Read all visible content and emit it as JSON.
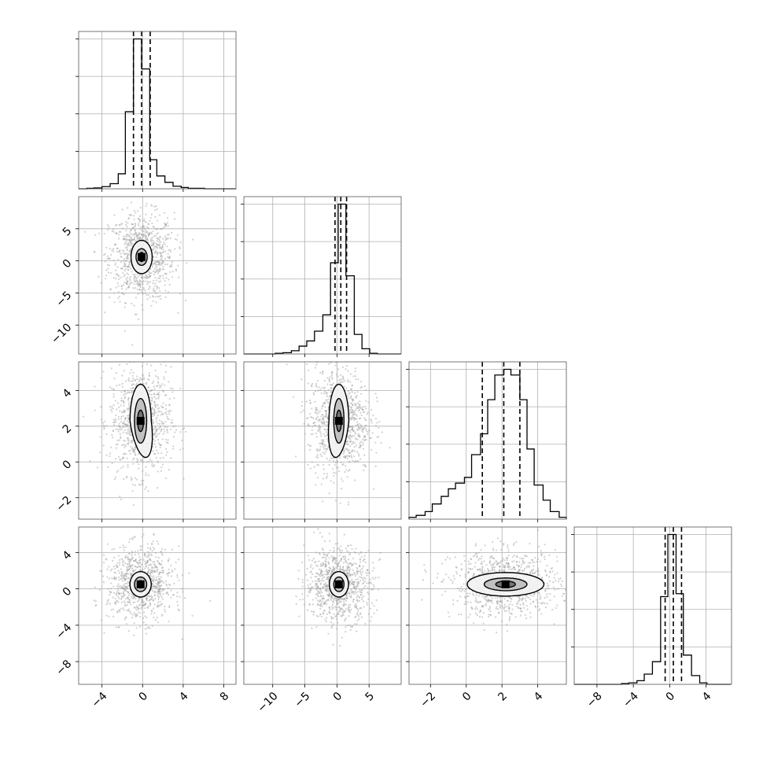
{
  "chart_data": {
    "type": "corner",
    "title": "",
    "grid": true,
    "colors": {
      "line": "#000000",
      "points": "#9a9a9a",
      "frame": "#555555",
      "grid": "#b0b0b0",
      "level_1": "#f2f2f2",
      "level_2": "#bdbdbd",
      "level_3": "#6f6f6f",
      "level_4": "#000000"
    },
    "parameters": [
      {
        "range": [
          -6.3,
          9.2
        ],
        "ticks": [
          -4,
          0,
          4,
          8
        ],
        "tick_labels": [
          "−4",
          "0",
          "4",
          "8"
        ],
        "quantiles": [
          -0.9,
          -0.1,
          0.75
        ]
      },
      {
        "range": [
          -14.5,
          10.0
        ],
        "ticks": [
          -10,
          -5,
          0,
          5
        ],
        "tick_labels": [
          "−10",
          "−5",
          "0",
          "5"
        ],
        "quantiles": [
          -0.3,
          0.6,
          1.5
        ]
      },
      {
        "range": [
          -3.2,
          5.6
        ],
        "ticks": [
          -2,
          0,
          2,
          4
        ],
        "tick_labels": [
          "−2",
          "0",
          "2",
          "4"
        ],
        "quantiles": [
          0.9,
          2.1,
          3.0
        ]
      },
      {
        "range": [
          -10.5,
          6.8
        ],
        "ticks": [
          -8,
          -4,
          0,
          4
        ],
        "tick_labels": [
          "−8",
          "−4",
          "0",
          "4"
        ],
        "quantiles": [
          -0.5,
          0.4,
          1.3
        ]
      }
    ],
    "histograms": [
      {
        "param": 0,
        "bin_edges": [
          -6.3,
          -5.5,
          -4.8,
          -4.0,
          -3.2,
          -2.4,
          -1.7,
          -0.9,
          -0.1,
          0.7,
          1.4,
          2.2,
          3.0,
          3.8,
          4.5,
          5.3,
          6.1,
          6.9,
          7.6,
          8.4,
          9.2
        ],
        "counts": [
          0,
          1,
          2,
          5,
          12,
          35,
          180,
          350,
          280,
          68,
          30,
          15,
          6,
          3,
          1,
          1,
          0,
          0,
          0,
          0
        ]
      },
      {
        "param": 1,
        "bin_edges": [
          -14.5,
          -13.3,
          -12.0,
          -10.8,
          -9.6,
          -8.4,
          -7.1,
          -5.9,
          -4.7,
          -3.5,
          -2.2,
          -1.0,
          0.2,
          1.4,
          2.7,
          3.9,
          5.1,
          6.3,
          7.6,
          8.8,
          10.0
        ],
        "counts": [
          0,
          0,
          0,
          0,
          1,
          2,
          5,
          12,
          20,
          35,
          60,
          140,
          230,
          120,
          30,
          8,
          1,
          0,
          0,
          0
        ]
      },
      {
        "param": 2,
        "bin_edges": [
          -3.2,
          -2.8,
          -2.3,
          -1.9,
          -1.4,
          -1.0,
          -0.6,
          -0.1,
          0.3,
          0.8,
          1.2,
          1.6,
          2.1,
          2.5,
          3.0,
          3.4,
          3.8,
          4.3,
          4.7,
          5.2,
          5.6
        ],
        "counts": [
          1,
          2,
          4,
          8,
          12,
          16,
          19,
          22,
          34,
          45,
          63,
          76,
          79,
          76,
          63,
          37,
          18,
          10,
          4,
          1
        ]
      },
      {
        "param": 3,
        "bin_edges": [
          -10.5,
          -9.6,
          -8.8,
          -7.9,
          -7.1,
          -6.2,
          -5.3,
          -4.5,
          -3.6,
          -2.8,
          -1.9,
          -1.0,
          -0.2,
          0.7,
          1.5,
          2.4,
          3.3,
          4.1,
          5.0,
          5.8,
          6.7
        ],
        "counts": [
          0,
          0,
          0,
          0,
          0,
          0,
          1,
          2,
          5,
          14,
          31,
          120,
          205,
          124,
          40,
          12,
          2,
          0,
          0,
          0
        ]
      }
    ],
    "pairs": [
      {
        "x_param": 0,
        "y_param": 1,
        "center": [
          -0.1,
          0.6
        ],
        "levels": [
          {
            "sx": 1.05,
            "sy": 2.6,
            "skew": 0.0
          },
          {
            "sx": 0.55,
            "sy": 1.3,
            "skew": 0.0
          },
          {
            "sx": 0.28,
            "sy": 0.7,
            "skew": 0.0
          }
        ],
        "scatter_spread": [
          1.6,
          3.4
        ]
      },
      {
        "x_param": 0,
        "y_param": 2,
        "center": [
          -0.2,
          2.3
        ],
        "levels": [
          {
            "sx": 1.05,
            "sy": 2.05,
            "skew": 0.5
          },
          {
            "sx": 0.6,
            "sy": 1.25,
            "skew": 0.0
          },
          {
            "sx": 0.3,
            "sy": 0.6,
            "skew": 0.0
          }
        ],
        "scatter_spread": [
          1.5,
          1.5
        ]
      },
      {
        "x_param": 1,
        "y_param": 2,
        "center": [
          0.3,
          2.3
        ],
        "levels": [
          {
            "sx": 1.55,
            "sy": 2.05,
            "skew": -0.5
          },
          {
            "sx": 0.8,
            "sy": 1.25,
            "skew": 0.0
          },
          {
            "sx": 0.4,
            "sy": 0.6,
            "skew": 0.0
          }
        ],
        "scatter_spread": [
          2.4,
          1.5
        ]
      },
      {
        "x_param": 0,
        "y_param": 3,
        "center": [
          -0.2,
          0.5
        ],
        "levels": [
          {
            "sx": 1.05,
            "sy": 1.4,
            "skew": 0.0
          },
          {
            "sx": 0.6,
            "sy": 0.8,
            "skew": 0.0
          },
          {
            "sx": 0.3,
            "sy": 0.4,
            "skew": 0.0
          }
        ],
        "scatter_spread": [
          1.6,
          2.0
        ]
      },
      {
        "x_param": 1,
        "y_param": 3,
        "center": [
          0.3,
          0.5
        ],
        "levels": [
          {
            "sx": 1.5,
            "sy": 1.4,
            "skew": 0.0
          },
          {
            "sx": 0.8,
            "sy": 0.8,
            "skew": 0.0
          },
          {
            "sx": 0.4,
            "sy": 0.4,
            "skew": 0.0
          }
        ],
        "scatter_spread": [
          2.6,
          2.0
        ]
      },
      {
        "x_param": 2,
        "y_param": 3,
        "center": [
          2.2,
          0.5
        ],
        "levels": [
          {
            "sx": 2.15,
            "sy": 1.3,
            "skew": 0.0
          },
          {
            "sx": 1.2,
            "sy": 0.7,
            "skew": 0.0
          },
          {
            "sx": 0.55,
            "sy": 0.35,
            "skew": 0.0
          }
        ],
        "scatter_spread": [
          1.5,
          1.8
        ]
      }
    ]
  }
}
